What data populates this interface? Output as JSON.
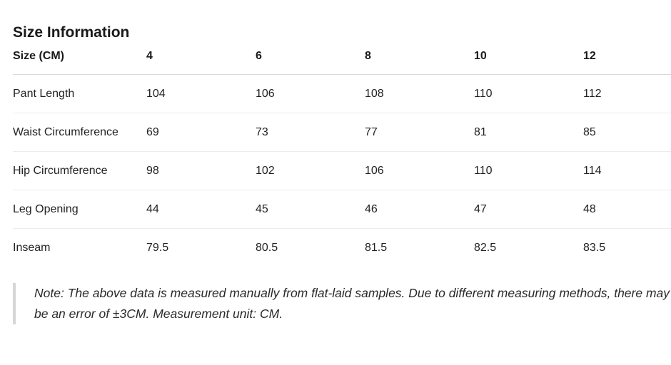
{
  "title": "Size Information",
  "table": {
    "headers": [
      "Size (CM)",
      "4",
      "6",
      "8",
      "10",
      "12"
    ],
    "rows": [
      {
        "label": "Pant Length",
        "values": [
          "104",
          "106",
          "108",
          "110",
          "112"
        ]
      },
      {
        "label": "Waist Circumference",
        "values": [
          "69",
          "73",
          "77",
          "81",
          "85"
        ]
      },
      {
        "label": "Hip Circumference",
        "values": [
          "98",
          "102",
          "106",
          "110",
          "114"
        ]
      },
      {
        "label": "Leg Opening",
        "values": [
          "44",
          "45",
          "46",
          "47",
          "48"
        ]
      },
      {
        "label": "Inseam",
        "values": [
          "79.5",
          "80.5",
          "81.5",
          "82.5",
          "83.5"
        ]
      }
    ]
  },
  "note": "Note: The above data is measured manually from flat-laid samples. Due to different measuring methods, there may be an error of ±3CM. Measurement unit: CM."
}
